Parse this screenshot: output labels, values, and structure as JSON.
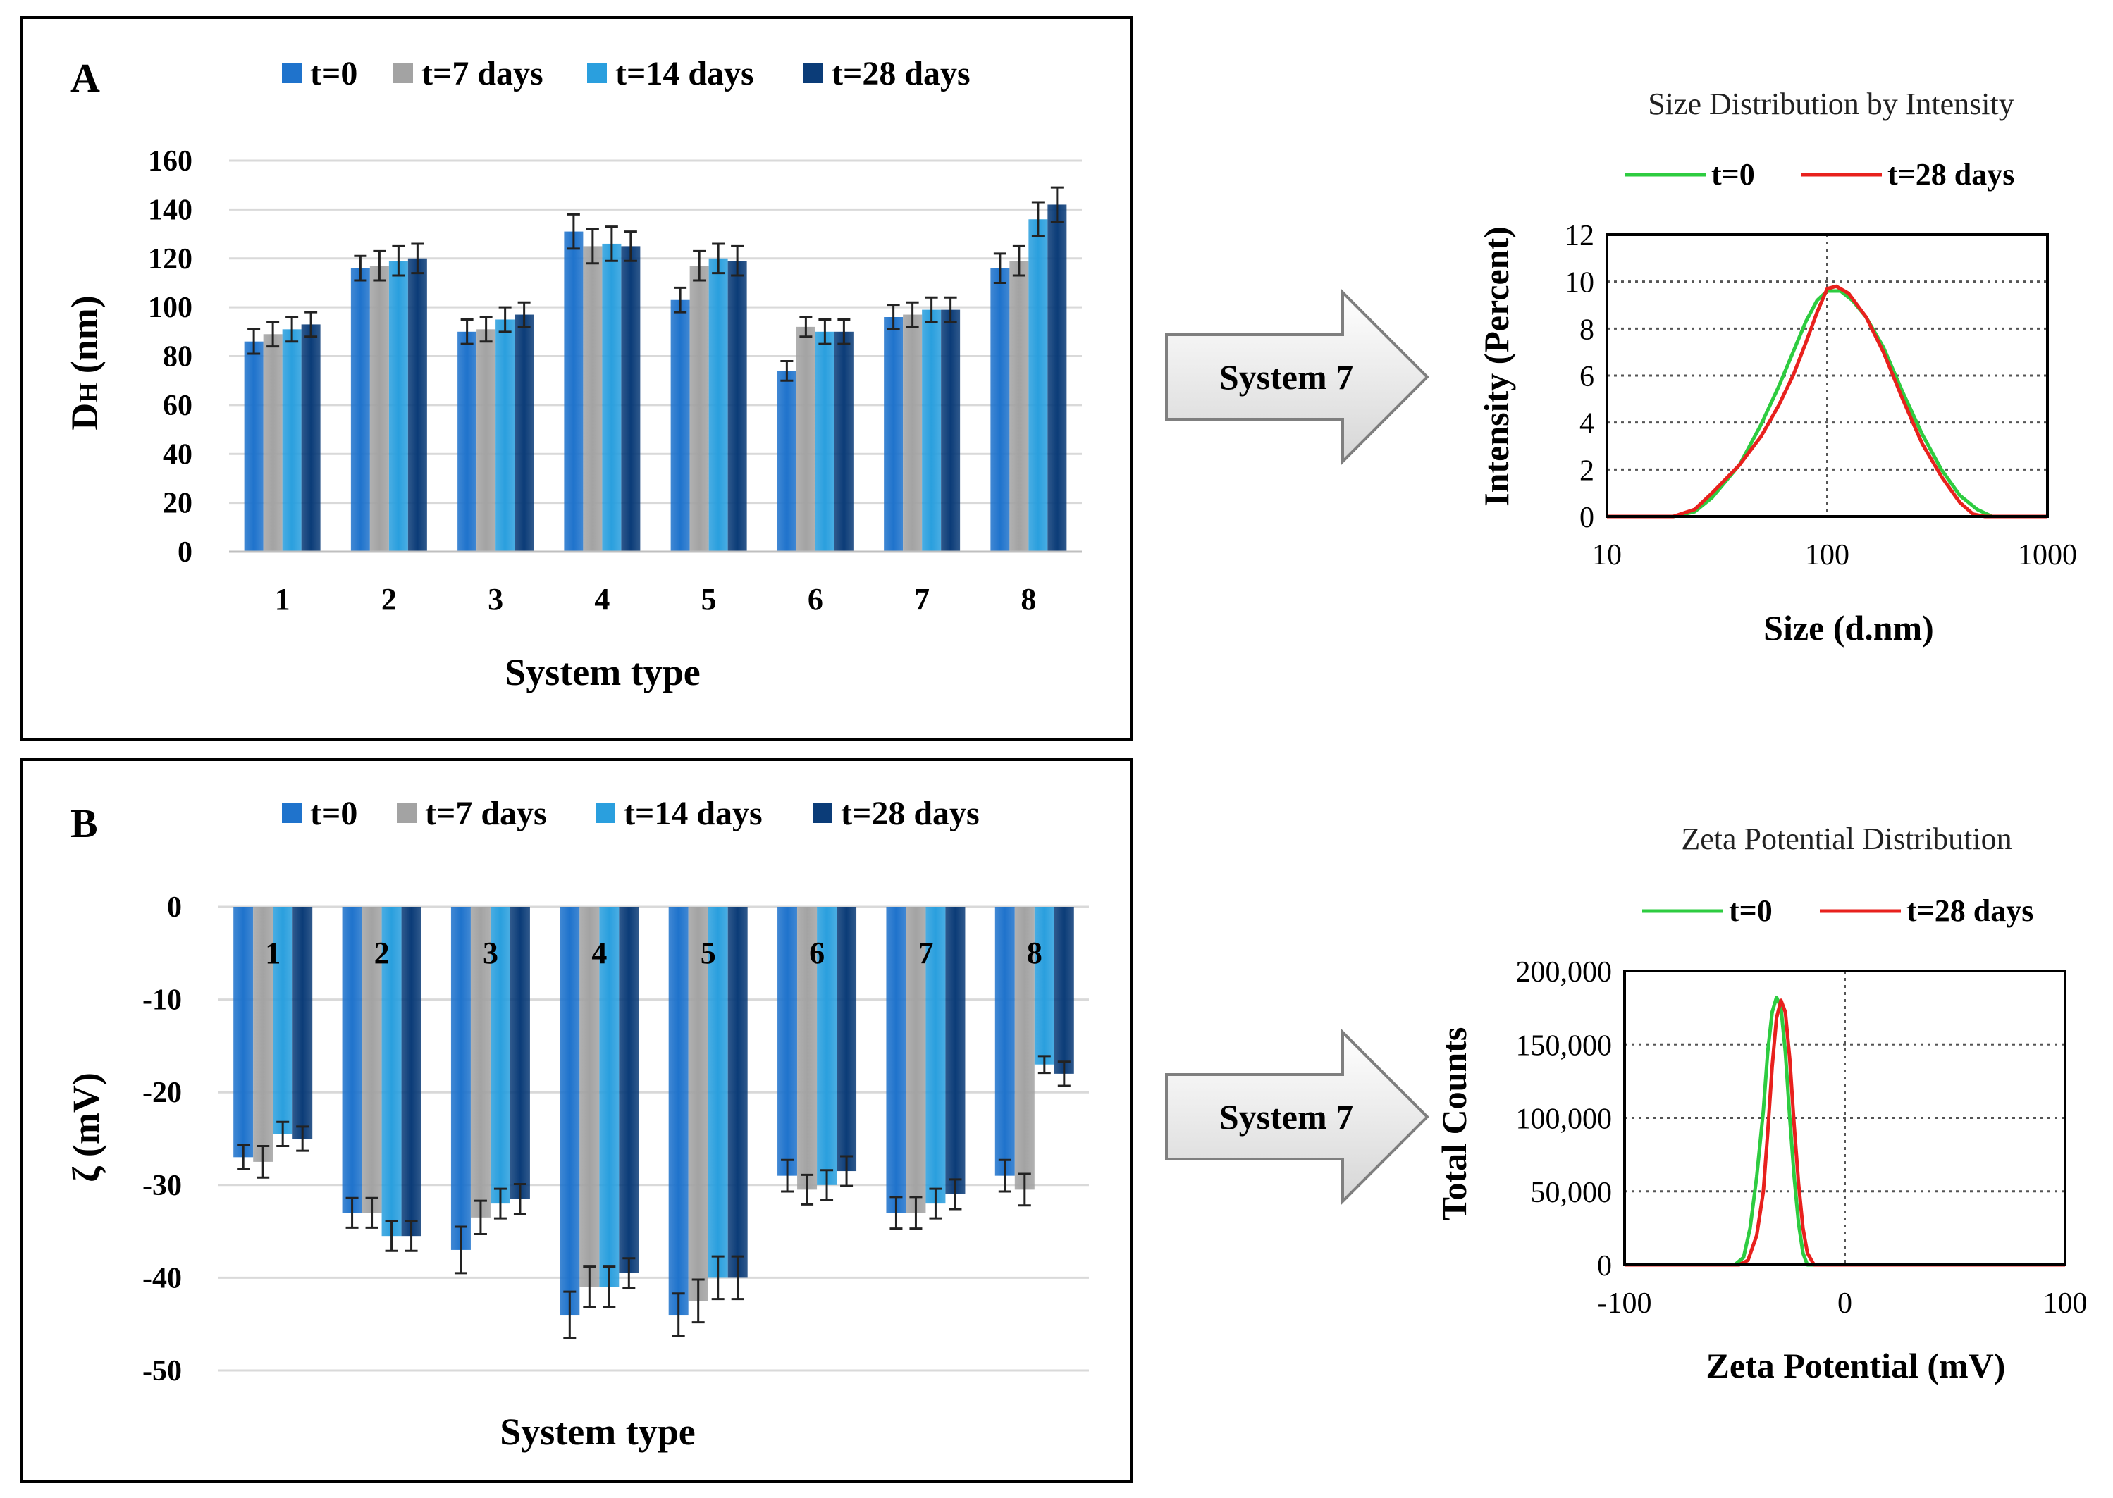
{
  "figure": {
    "arrow_label_top": "System 7",
    "arrow_label_bottom": "System 7"
  },
  "colors": {
    "t0": "#1f73cc",
    "t7": "#a3a3a3",
    "t14": "#2a9fde",
    "t28": "#0b3c78",
    "green": "#2ecc40",
    "red": "#e8211d",
    "grid": "#d9d9d9",
    "frame": "#000000"
  },
  "chart_data": [
    {
      "id": "A",
      "type": "bar",
      "panel_label": "A",
      "xlabel": "System type",
      "ylabel_main": "D",
      "ylabel_sub": "H",
      "ylabel_unit": "(nm)",
      "ylim": [
        0,
        160
      ],
      "yticks": [
        0,
        20,
        40,
        60,
        80,
        100,
        120,
        140,
        160
      ],
      "categories": [
        "1",
        "2",
        "3",
        "4",
        "5",
        "6",
        "7",
        "8"
      ],
      "series": [
        {
          "name": "t=0",
          "values": [
            86,
            116,
            90,
            131,
            103,
            74,
            96,
            116
          ],
          "errors": [
            5,
            5,
            5,
            7,
            5,
            4,
            5,
            6
          ]
        },
        {
          "name": "t=7 days",
          "values": [
            89,
            117,
            91,
            125,
            117,
            92,
            97,
            119
          ],
          "errors": [
            5,
            6,
            5,
            7,
            6,
            4,
            5,
            6
          ]
        },
        {
          "name": "t=14 days",
          "values": [
            91,
            119,
            95,
            126,
            120,
            90,
            99,
            136
          ],
          "errors": [
            5,
            6,
            5,
            7,
            6,
            5,
            5,
            7
          ]
        },
        {
          "name": "t=28 days",
          "values": [
            93,
            120,
            97,
            125,
            119,
            90,
            99,
            142
          ],
          "errors": [
            5,
            6,
            5,
            6,
            6,
            5,
            5,
            7
          ]
        }
      ]
    },
    {
      "id": "A_inset",
      "type": "line",
      "title": "Size Distribution by Intensity",
      "xlabel": "Size (d.nm)",
      "ylabel": "Intensity (Percent)",
      "xscale": "log",
      "xlim": [
        10,
        1000
      ],
      "ylim": [
        0,
        12
      ],
      "xticks": [
        "10",
        "100",
        "1000"
      ],
      "yticks": [
        "0",
        "2",
        "4",
        "6",
        "8",
        "10",
        "12"
      ],
      "series": [
        {
          "name": "t=0",
          "x": [
            10,
            20,
            25,
            30,
            40,
            50,
            60,
            70,
            80,
            90,
            100,
            115,
            130,
            150,
            180,
            220,
            270,
            330,
            400,
            480,
            560,
            700,
            1000
          ],
          "y": [
            0,
            0,
            0.2,
            0.8,
            2.2,
            3.9,
            5.5,
            7.0,
            8.3,
            9.2,
            9.6,
            9.6,
            9.2,
            8.5,
            7.2,
            5.3,
            3.5,
            2.0,
            0.9,
            0.3,
            0,
            0,
            0
          ]
        },
        {
          "name": "t=28 days",
          "x": [
            10,
            20,
            25,
            30,
            40,
            50,
            60,
            70,
            80,
            90,
            100,
            110,
            125,
            150,
            180,
            220,
            270,
            330,
            400,
            460,
            520,
            700,
            1000
          ],
          "y": [
            0,
            0,
            0.3,
            1.0,
            2.2,
            3.4,
            4.7,
            6.0,
            7.4,
            8.7,
            9.7,
            9.8,
            9.5,
            8.5,
            7.0,
            5.0,
            3.1,
            1.7,
            0.6,
            0.1,
            0,
            0,
            0
          ]
        }
      ]
    },
    {
      "id": "B",
      "type": "bar",
      "panel_label": "B",
      "xlabel": "System type",
      "ylabel": "ζ (mV)",
      "ylim": [
        -50,
        0
      ],
      "yticks": [
        0,
        -10,
        -20,
        -30,
        -40,
        -50
      ],
      "categories": [
        "1",
        "2",
        "3",
        "4",
        "5",
        "6",
        "7",
        "8"
      ],
      "series": [
        {
          "name": "t=0",
          "values": [
            -27,
            -33,
            -37,
            -44,
            -44,
            -29,
            -33,
            -29
          ],
          "errors": [
            1.3,
            1.6,
            2.5,
            2.5,
            2.3,
            1.7,
            1.7,
            1.7
          ]
        },
        {
          "name": "t=7 days",
          "values": [
            -27.5,
            -33,
            -33.5,
            -41,
            -42.5,
            -30.5,
            -33,
            -30.5
          ],
          "errors": [
            1.7,
            1.6,
            1.8,
            2.2,
            2.3,
            1.6,
            1.7,
            1.7
          ]
        },
        {
          "name": "t=14 days",
          "values": [
            -24.5,
            -35.5,
            -32,
            -41,
            -40,
            -30,
            -32,
            -17
          ],
          "errors": [
            1.3,
            1.6,
            1.6,
            2.2,
            2.3,
            1.6,
            1.6,
            0.9
          ]
        },
        {
          "name": "t=28 days",
          "values": [
            -25,
            -35.5,
            -31.5,
            -39.5,
            -40,
            -28.5,
            -31,
            -18
          ],
          "errors": [
            1.3,
            1.6,
            1.6,
            1.6,
            2.3,
            1.6,
            1.6,
            1.3
          ]
        }
      ]
    },
    {
      "id": "B_inset",
      "type": "line",
      "title": "Zeta Potential Distribution",
      "xlabel": "Zeta Potential (mV)",
      "ylabel": "Total Counts",
      "xlim": [
        -100,
        100
      ],
      "ylim": [
        0,
        200000
      ],
      "xticks": [
        "-100",
        "0",
        "100"
      ],
      "yticks": [
        "0",
        "50,000",
        "100,000",
        "150,000",
        "200,000"
      ],
      "series": [
        {
          "name": "t=0",
          "x": [
            -100,
            -50,
            -46,
            -43,
            -40,
            -37,
            -35,
            -33,
            -31,
            -29,
            -27,
            -25,
            -23,
            -21,
            -19,
            -17,
            0,
            100
          ],
          "y": [
            0,
            0,
            5000,
            25000,
            60000,
            105000,
            145000,
            172000,
            182000,
            175000,
            145000,
            100000,
            60000,
            28000,
            8000,
            0,
            0,
            0
          ]
        },
        {
          "name": "t=28 days",
          "x": [
            -100,
            -48,
            -44,
            -40,
            -37,
            -35,
            -33,
            -31,
            -29,
            -27,
            -25,
            -23,
            -21,
            -19,
            -17,
            -14,
            0,
            100
          ],
          "y": [
            0,
            0,
            3000,
            20000,
            50000,
            90000,
            135000,
            168000,
            180000,
            172000,
            140000,
            95000,
            55000,
            25000,
            8000,
            0,
            0,
            0
          ]
        }
      ]
    }
  ]
}
